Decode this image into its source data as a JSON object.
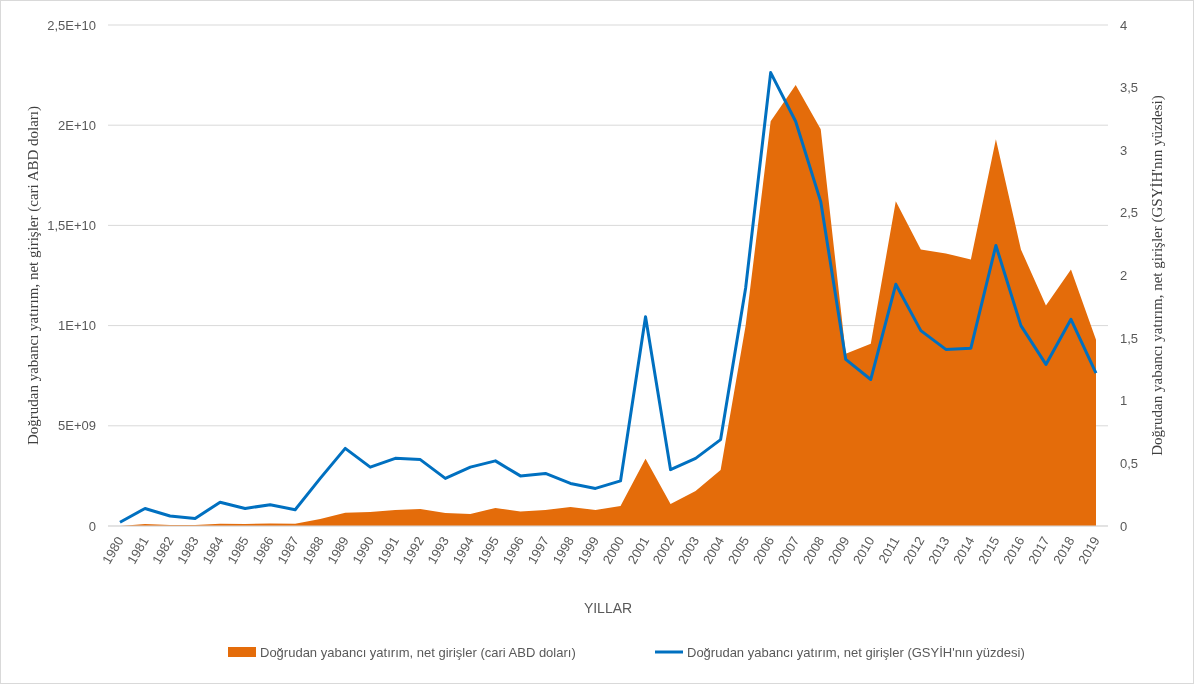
{
  "chart_data": {
    "type": "area",
    "xlabel": "YILLAR",
    "ylabel": "Doğrudan yabancı yatırım, net girişler (cari ABD doları)",
    "y2label": "Doğrudan yabancı yatırım, net girişler (GSYİH'nın yüzdesi)",
    "categories": [
      "1980",
      "1981",
      "1982",
      "1983",
      "1984",
      "1985",
      "1986",
      "1987",
      "1988",
      "1989",
      "1990",
      "1991",
      "1992",
      "1993",
      "1994",
      "1995",
      "1996",
      "1997",
      "1998",
      "1999",
      "2000",
      "2001",
      "2002",
      "2003",
      "2004",
      "2005",
      "2006",
      "2007",
      "2008",
      "2009",
      "2010",
      "2011",
      "2012",
      "2013",
      "2014",
      "2015",
      "2016",
      "2017",
      "2018",
      "2019"
    ],
    "series": [
      {
        "name": "Doğrudan yabancı yatırım, net girişler (cari ABD doları)",
        "color": "#e46c0a",
        "values": [
          0,
          100000000,
          50000000,
          50000000,
          110000000,
          100000000,
          120000000,
          110000000,
          350000000,
          660000000,
          700000000,
          800000000,
          850000000,
          650000000,
          600000000,
          900000000,
          720000000,
          800000000,
          950000000,
          800000000,
          1000000000,
          3350000000,
          1100000000,
          1750000000,
          2800000000,
          10000000000,
          20200000000,
          22000000000,
          19800000000,
          8600000000,
          9100000000,
          16200000000,
          13800000000,
          13600000000,
          13300000000,
          19300000000,
          13800000000,
          11000000000,
          12800000000,
          9300000000
        ]
      },
      {
        "name": "Doğrudan yabancı yatırım, net girişler (GSYİH'nın yüzdesi)",
        "type": "line",
        "axis": "y2",
        "color": "#0070c0",
        "values": [
          0.03,
          0.14,
          0.08,
          0.06,
          0.19,
          0.14,
          0.17,
          0.13,
          0.38,
          0.62,
          0.47,
          0.54,
          0.53,
          0.38,
          0.47,
          0.52,
          0.4,
          0.42,
          0.34,
          0.3,
          0.36,
          1.67,
          0.45,
          0.54,
          0.69,
          1.9,
          3.62,
          3.23,
          2.59,
          1.33,
          1.17,
          1.93,
          1.56,
          1.41,
          1.42,
          2.24,
          1.6,
          1.29,
          1.65,
          1.22
        ]
      }
    ],
    "ylim": [
      0,
      25000000000
    ],
    "yticks": [
      0,
      {
        "value": 5000000000,
        "label": "5E+09"
      },
      {
        "value": 10000000000,
        "label": "1E+10"
      },
      {
        "value": 15000000000,
        "label": "1,5E+10"
      },
      {
        "value": 20000000000,
        "label": "2E+10"
      },
      {
        "value": 25000000000,
        "label": "2,5E+10"
      }
    ],
    "y2lim": [
      0,
      4
    ],
    "y2ticks": [
      0,
      {
        "value": 0.5,
        "label": "0,5"
      },
      1,
      {
        "value": 1.5,
        "label": "1,5"
      },
      2,
      {
        "value": 2.5,
        "label": "2,5"
      },
      3,
      {
        "value": 3.5,
        "label": "3,5"
      },
      4
    ],
    "grid": "y",
    "legend": "bottom",
    "marker": "none",
    "line_style": "solid"
  }
}
